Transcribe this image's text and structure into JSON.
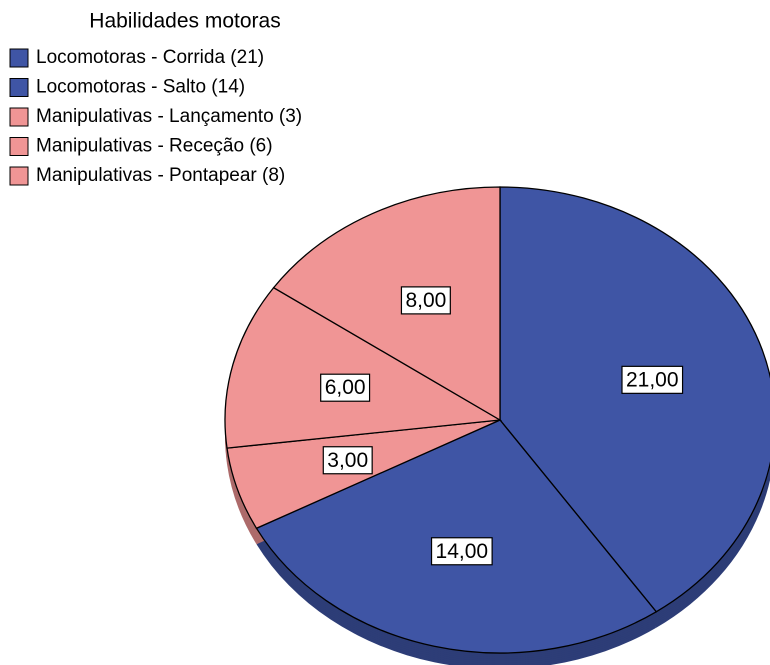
{
  "chart_data": {
    "type": "pie",
    "legend_title": "Habilidades motoras",
    "categories": [
      "Locomotoras - Corrida (21)",
      "Locomotoras - Salto (14)",
      "Manipulativas - Lançamento (3)",
      "Manipulativas - Receção (6)",
      "Manipulativas - Pontapear  (8)"
    ],
    "values": [
      21,
      14,
      3,
      6,
      8
    ],
    "value_labels": [
      "21,00",
      "14,00",
      "3,00",
      "6,00",
      "8,00"
    ],
    "colors": [
      "#3f55a5",
      "#3f55a5",
      "#f09595",
      "#f09595",
      "#f09595"
    ],
    "legend": "top-left"
  }
}
